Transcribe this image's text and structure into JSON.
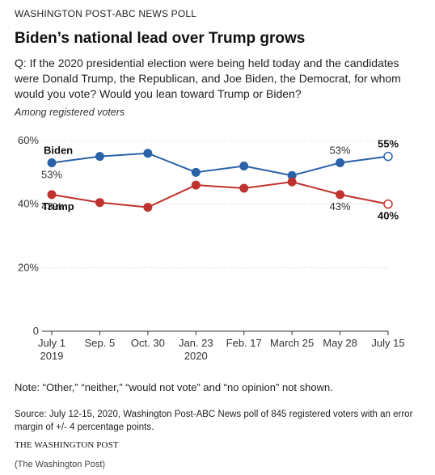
{
  "kicker": "WASHINGTON POST-ABC NEWS POLL",
  "title": "Biden’s national lead over Trump grows",
  "question": "Q: If the 2020 presidential election were being held today and the candidates were Donald Trump, the Republican, and Joe Biden, the Democrat, for whom would you vote?  Would you lean toward Trump or Biden?",
  "subtitle": "Among registered voters",
  "note": "Note: “Other,” “neither,” “would not vote” and “no opinion” not shown.",
  "source": "Source: July 12-15, 2020, Washington Post-ABC News poll of 845 registered voters with an error margin of +/- 4 percentage points.",
  "brand": "THE WASHINGTON POST",
  "credit": "(The Washington Post)",
  "chart_data": {
    "type": "line",
    "categories": [
      "July 1|2019",
      "Sep. 5",
      "Oct. 30",
      "Jan. 23|2020",
      "Feb. 17",
      "March 25",
      "May 28",
      "July 15"
    ],
    "ylim": [
      0,
      60
    ],
    "yticks": [
      0,
      20,
      40,
      60
    ],
    "ytick_labels": [
      "0",
      "20%",
      "40%",
      "60%"
    ],
    "grid": true,
    "series": [
      {
        "name": "Biden",
        "color": "#2a62a8",
        "values": [
          53,
          55,
          56,
          50,
          52,
          49,
          53,
          55
        ],
        "labels": [
          {
            "index": 0,
            "text": "53%",
            "pos": "below"
          },
          {
            "index": 6,
            "text": "53%",
            "pos": "above"
          },
          {
            "index": 7,
            "text": "55%",
            "pos": "above",
            "bold": true
          }
        ]
      },
      {
        "name": "Trump",
        "color": "#c0322e",
        "values": [
          43,
          40.5,
          39,
          46,
          45,
          47,
          43,
          40
        ],
        "labels": [
          {
            "index": 0,
            "text": "43%",
            "pos": "below"
          },
          {
            "index": 6,
            "text": "43%",
            "pos": "below"
          },
          {
            "index": 7,
            "text": "40%",
            "pos": "below",
            "bold": true
          }
        ]
      }
    ]
  }
}
